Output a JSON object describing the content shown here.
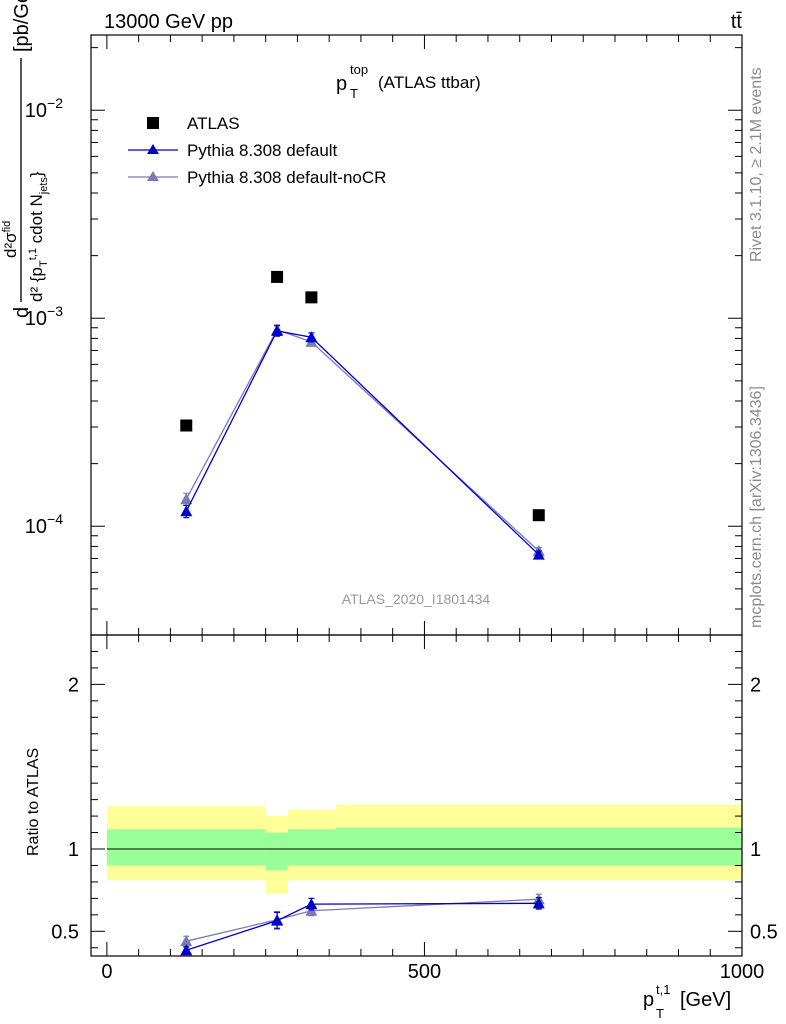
{
  "header": {
    "energy_label": "13000 GeV pp",
    "process_label": "tt̄"
  },
  "plot_title": {
    "main": "p",
    "sup": "top",
    "sub": "T",
    "suffix": "(ATLAS ttbar)"
  },
  "analysis_id": "ATLAS_2020_I1801434",
  "side_labels": {
    "rivet": "Rivet 3.1.10, ≥ 2.1M events",
    "mcplots": "mcplots.cern.ch [arXiv:1306.3436]"
  },
  "axes": {
    "xlabel_main": "p",
    "xlabel_sup": "t,1",
    "xlabel_sub": "T",
    "xlabel_unit": "[GeV]",
    "ratio_ylabel": "Ratio to ATLAS",
    "ylabel_unit": "[pb/GeV]"
  },
  "colors": {
    "atlas": "#000000",
    "default": "#0000c8",
    "nocr": "#7b7bb4",
    "band_inner": "#99ff99",
    "band_outer": "#ffff99"
  },
  "chart_data": [
    {
      "type": "scatter",
      "panel": "main",
      "yscale": "log",
      "xlim": [
        -25,
        1000
      ],
      "ylim": [
        3e-05,
        0.023
      ],
      "yticks": [
        0.0001,
        0.001,
        0.01
      ],
      "ytick_labels": [
        {
          "base": "10",
          "exp": "−4"
        },
        {
          "base": "10",
          "exp": "−3"
        },
        {
          "base": "10",
          "exp": "−2"
        }
      ],
      "legend_position": "top-left",
      "series": [
        {
          "name": "ATLAS",
          "marker": "square",
          "x": [
            125,
            268,
            322,
            680
          ],
          "y": [
            0.000305,
            0.00158,
            0.00126,
            0.000113
          ]
        },
        {
          "name": "Pythia 8.308 default",
          "marker": "triangle",
          "x": [
            125,
            268,
            322,
            680
          ],
          "y": [
            0.000118,
            0.00087,
            0.00081,
            7.3e-05
          ],
          "err": [
            8e-06,
            5e-05,
            4e-05,
            3e-06
          ]
        },
        {
          "name": "Pythia 8.308 default-noCR",
          "marker": "triangle",
          "x": [
            125,
            268,
            322,
            680
          ],
          "y": [
            0.000135,
            0.00088,
            0.00077,
            7.6e-05
          ],
          "err": [
            9e-06,
            5e-05,
            3e-05,
            3e-06
          ]
        }
      ]
    },
    {
      "type": "line",
      "panel": "ratio",
      "xlim": [
        -25,
        1000
      ],
      "ylim": [
        0.35,
        2.3
      ],
      "yticks": [
        0.5,
        1,
        2
      ],
      "ytick_labels": [
        "0.5",
        "1",
        "2"
      ],
      "xticks": [
        0,
        500,
        1000
      ],
      "xtick_labels": [
        "0",
        "500",
        "1000"
      ],
      "bands": [
        {
          "x_lo": 0,
          "x_hi": 250,
          "outer": [
            0.81,
            1.26
          ],
          "inner": [
            0.9,
            1.12
          ]
        },
        {
          "x_lo": 250,
          "x_hi": 285,
          "outer": [
            0.73,
            1.2
          ],
          "inner": [
            0.87,
            1.1
          ]
        },
        {
          "x_lo": 285,
          "x_hi": 360,
          "outer": [
            0.81,
            1.24
          ],
          "inner": [
            0.9,
            1.12
          ]
        },
        {
          "x_lo": 360,
          "x_hi": 1000,
          "outer": [
            0.81,
            1.27
          ],
          "inner": [
            0.9,
            1.13
          ]
        }
      ],
      "series": [
        {
          "name": "Pythia 8.308 default",
          "x": [
            125,
            268,
            322,
            680
          ],
          "y": [
            0.385,
            0.565,
            0.665,
            0.67
          ],
          "err": [
            0.02,
            0.05,
            0.035,
            0.035
          ]
        },
        {
          "name": "Pythia 8.308 default-noCR",
          "x": [
            125,
            268,
            322,
            680
          ],
          "y": [
            0.44,
            0.57,
            0.625,
            0.695
          ],
          "err": [
            0.03,
            0.05,
            0.03,
            0.03
          ]
        }
      ]
    }
  ]
}
